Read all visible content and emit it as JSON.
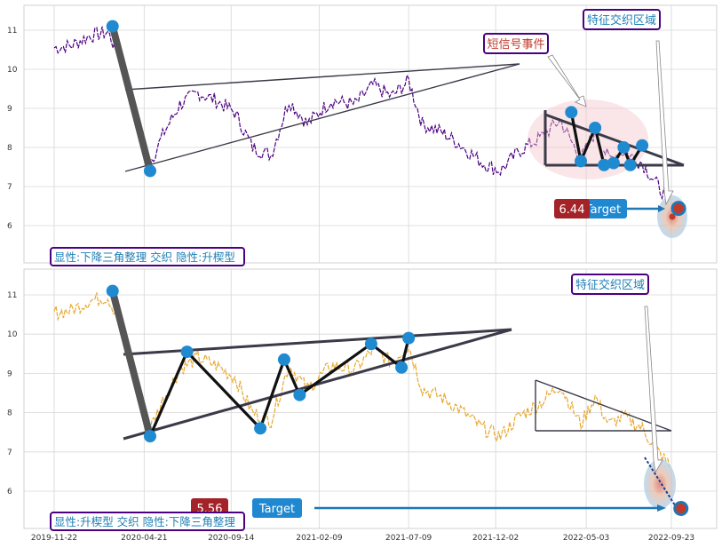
{
  "chart_data": [
    {
      "type": "line",
      "panel": "top",
      "ylim": [
        5.1,
        11.6
      ],
      "yticks": [
        6,
        7,
        8,
        9,
        10,
        11
      ],
      "grid": true,
      "series_color": "#4b0082",
      "legend_text": "显性:下降三角整理 交织 隐性:升楔型",
      "annotations": {
        "feature_zone": "特征交织区域",
        "sms_event": "短信号事件",
        "target_label": "Target",
        "target_value": "6.44"
      },
      "pivots": [
        {
          "date": "2020-02-28",
          "value": 11.1
        },
        {
          "date": "2020-05-01",
          "value": 7.4
        },
        {
          "date": "2022-04-08",
          "value": 8.9
        },
        {
          "date": "2022-04-24",
          "value": 7.65
        },
        {
          "date": "2022-05-18",
          "value": 8.5
        },
        {
          "date": "2022-06-02",
          "value": 7.55
        },
        {
          "date": "2022-06-18",
          "value": 7.6
        },
        {
          "date": "2022-07-05",
          "value": 8.0
        },
        {
          "date": "2022-07-16",
          "value": 7.55
        },
        {
          "date": "2022-08-05",
          "value": 8.05
        }
      ],
      "target_point": {
        "date": "2022-10-05",
        "value": 6.44
      }
    },
    {
      "type": "line",
      "panel": "bottom",
      "ylim": [
        5.1,
        11.6
      ],
      "yticks": [
        6,
        7,
        8,
        9,
        10,
        11
      ],
      "xticks": [
        "2019-11-22",
        "2020-04-21",
        "2020-09-14",
        "2021-02-09",
        "2021-07-09",
        "2021-12-02",
        "2022-05-03",
        "2022-09-23"
      ],
      "grid": true,
      "series_color": "#e8a830",
      "legend_text": "显性:升楔型 交织 隐性:下降三角整理",
      "annotations": {
        "feature_zone": "特征交织区域",
        "target_label": "Target",
        "target_value": "5.56"
      },
      "pivots": [
        {
          "date": "2020-02-28",
          "value": 11.1
        },
        {
          "date": "2020-05-01",
          "value": 7.4
        },
        {
          "date": "2020-07-02",
          "value": 9.55
        },
        {
          "date": "2020-11-02",
          "value": 7.6
        },
        {
          "date": "2020-12-12",
          "value": 9.35
        },
        {
          "date": "2021-01-07",
          "value": 8.45
        },
        {
          "date": "2021-05-07",
          "value": 9.75
        },
        {
          "date": "2021-06-27",
          "value": 9.15
        },
        {
          "date": "2021-07-09",
          "value": 9.9
        }
      ],
      "target_point": {
        "date": "2022-10-09",
        "value": 5.56
      }
    }
  ]
}
